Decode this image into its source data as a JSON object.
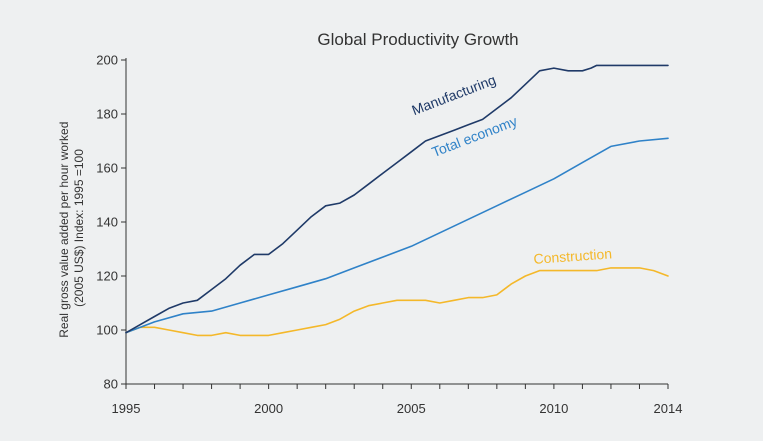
{
  "chart_data": {
    "type": "line",
    "title": "Global Productivity Growth",
    "ylabel_line1": "Real gross value added per hour worked",
    "ylabel_line2": "(2005 US$) Index: 1995 =100",
    "xlabel": "",
    "ylim": [
      80,
      200
    ],
    "xlim": [
      1995,
      2014
    ],
    "yticks": [
      80,
      100,
      120,
      140,
      160,
      180,
      200
    ],
    "xticks": [
      1995,
      2000,
      2005,
      2010,
      2014
    ],
    "grid": false,
    "series": [
      {
        "name": "Manufacturing",
        "color": "#1f3a68",
        "x": [
          1995,
          1995.5,
          1996,
          1996.5,
          1997,
          1997.5,
          1998,
          1998.5,
          1999,
          1999.5,
          2000,
          2000.5,
          2001,
          2001.5,
          2002,
          2002.5,
          2003,
          2003.5,
          2004,
          2004.5,
          2005,
          2005.5,
          2006,
          2006.5,
          2007,
          2007.5,
          2008,
          2008.5,
          2009,
          2009.5,
          2010,
          2010.5,
          2011,
          2011.3,
          2011.5,
          2012,
          2012.5,
          2013,
          2013.5,
          2014
        ],
        "values": [
          99,
          102,
          105,
          108,
          110,
          111,
          115,
          119,
          124,
          128,
          128,
          132,
          137,
          142,
          146,
          147,
          150,
          154,
          158,
          162,
          166,
          170,
          172,
          174,
          176,
          178,
          182,
          186,
          191,
          196,
          197,
          196,
          196,
          197,
          198,
          198,
          198,
          198,
          198,
          198
        ],
        "label_x": 2005.1,
        "label_y": 179.5,
        "label_angle": -21
      },
      {
        "name": "Total economy",
        "color": "#2f82c8",
        "x": [
          1995,
          1996,
          1997,
          1998,
          1999,
          2000,
          2001,
          2002,
          2003,
          2004,
          2005,
          2006,
          2007,
          2008,
          2009,
          2010,
          2011,
          2012,
          2013,
          2014
        ],
        "values": [
          99,
          103,
          106,
          107,
          110,
          113,
          116,
          119,
          123,
          127,
          131,
          136,
          141,
          146,
          151,
          156,
          162,
          168,
          170,
          171
        ],
        "label_x": 2005.8,
        "label_y": 164,
        "label_angle": -21
      },
      {
        "name": "Construction",
        "color": "#f4b82a",
        "x": [
          1995,
          1995.5,
          1996,
          1996.5,
          1997,
          1997.5,
          1998,
          1998.5,
          1999,
          1999.5,
          2000,
          2000.5,
          2001,
          2001.5,
          2002,
          2002.5,
          2003,
          2003.5,
          2004,
          2004.5,
          2005,
          2005.5,
          2006,
          2006.5,
          2007,
          2007.5,
          2008,
          2008.5,
          2009,
          2009.5,
          2010,
          2010.5,
          2011,
          2011.5,
          2012,
          2012.5,
          2013,
          2013.5,
          2014
        ],
        "values": [
          99,
          101,
          101,
          100,
          99,
          98,
          98,
          99,
          98,
          98,
          98,
          99,
          100,
          101,
          102,
          104,
          107,
          109,
          110,
          111,
          111,
          111,
          110,
          111,
          112,
          112,
          113,
          117,
          120,
          122,
          122,
          122,
          122,
          122,
          123,
          123,
          123,
          122,
          120
        ],
        "label_x": 2009.3,
        "label_y": 124.5,
        "label_angle": -4
      }
    ]
  }
}
